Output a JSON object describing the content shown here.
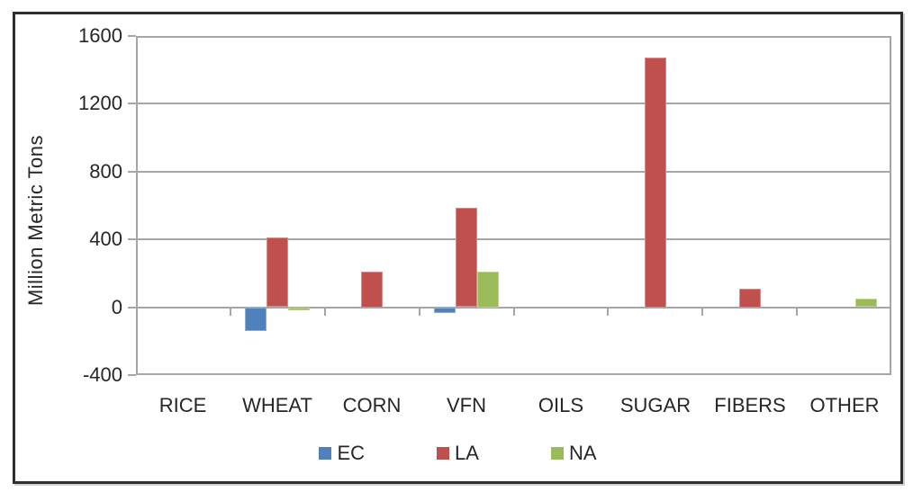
{
  "chart_data": {
    "type": "bar",
    "title": "",
    "xlabel": "",
    "ylabel": "Million Metric Tons",
    "categories": [
      "RICE",
      "WHEAT",
      "CORN",
      "VFN",
      "OILS",
      "SUGAR",
      "FIBERS",
      "OTHER"
    ],
    "series": [
      {
        "name": "EC",
        "color": "#4F81BD",
        "values": [
          0,
          -140,
          0,
          -30,
          0,
          0,
          0,
          0
        ]
      },
      {
        "name": "LA",
        "color": "#C0504D",
        "values": [
          0,
          410,
          210,
          585,
          0,
          1475,
          110,
          0
        ]
      },
      {
        "name": "NA",
        "color": "#9BBB59",
        "values": [
          0,
          -15,
          0,
          210,
          0,
          0,
          0,
          50
        ]
      }
    ],
    "ylim": [
      -400,
      1600
    ],
    "yticks": [
      -400,
      0,
      400,
      800,
      1200,
      1600
    ],
    "grid": true,
    "legend_position": "bottom",
    "colors": {
      "grid_line": "#a6a6a6",
      "frame_border": "#2e2e2e",
      "text": "#262626",
      "background": "#ffffff"
    }
  }
}
